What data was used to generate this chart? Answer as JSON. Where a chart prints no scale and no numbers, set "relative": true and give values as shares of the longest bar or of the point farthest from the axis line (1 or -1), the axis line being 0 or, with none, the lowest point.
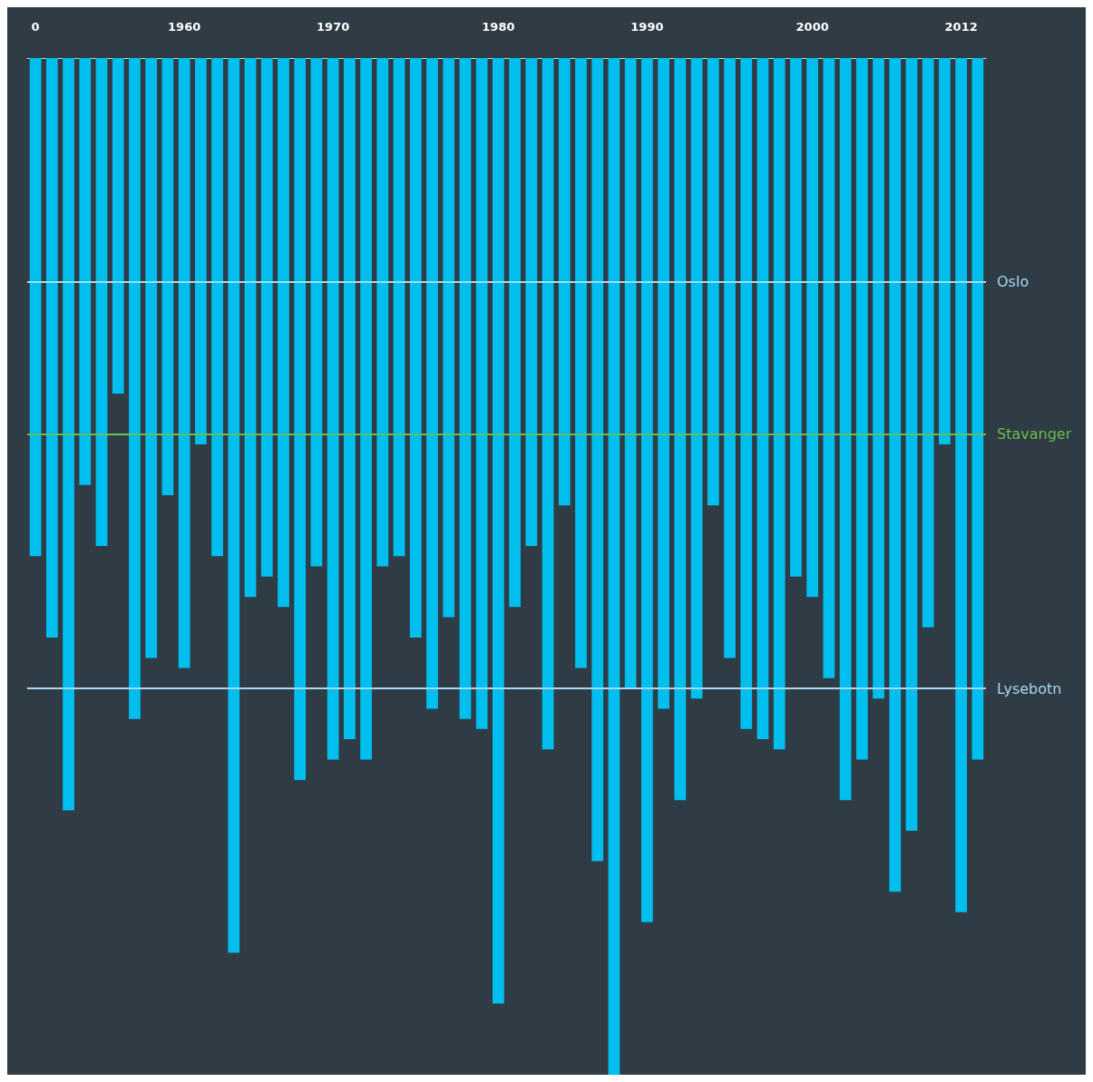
{
  "chart_data": {
    "type": "bar",
    "relative": true,
    "color": "#00bfef",
    "grid": false,
    "categories": [
      "0",
      null,
      null,
      null,
      null,
      null,
      null,
      null,
      null,
      "1960",
      null,
      null,
      null,
      null,
      null,
      null,
      null,
      null,
      "1970",
      null,
      null,
      null,
      null,
      null,
      null,
      null,
      null,
      null,
      "1980",
      null,
      null,
      null,
      null,
      null,
      null,
      null,
      null,
      "1990",
      null,
      null,
      null,
      null,
      null,
      null,
      null,
      null,
      null,
      "2000",
      null,
      null,
      null,
      null,
      null,
      null,
      null,
      null,
      "2012",
      null
    ],
    "values": [
      -0.49,
      -0.57,
      -0.74,
      -0.42,
      -0.48,
      -0.33,
      -0.65,
      -0.59,
      -0.43,
      -0.6,
      -0.38,
      -0.49,
      -0.88,
      -0.53,
      -0.51,
      -0.54,
      -0.71,
      -0.5,
      -0.69,
      -0.67,
      -0.69,
      -0.5,
      -0.49,
      -0.57,
      -0.64,
      -0.55,
      -0.65,
      -0.66,
      -0.93,
      -0.54,
      -0.48,
      -0.68,
      -0.44,
      -0.6,
      -0.79,
      -1,
      -0.62,
      -0.85,
      -0.64,
      -0.73,
      -0.63,
      -0.44,
      -0.59,
      -0.66,
      -0.67,
      -0.68,
      -0.51,
      -0.53,
      -0.61,
      -0.73,
      -0.69,
      -0.63,
      -0.82,
      -0.76,
      -0.56,
      -0.38,
      -0.84,
      -0.69
    ],
    "ref_lines": [
      {
        "axis": "y",
        "value": -0.22,
        "label": "Oslo",
        "color": "#a9d9f2"
      },
      {
        "axis": "y",
        "value": -0.37,
        "label": "Stavanger",
        "color": "#6cbf4a"
      },
      {
        "axis": "y",
        "value": -0.62,
        "label": "Lysebotn",
        "color": "#a9d9f2"
      }
    ]
  }
}
